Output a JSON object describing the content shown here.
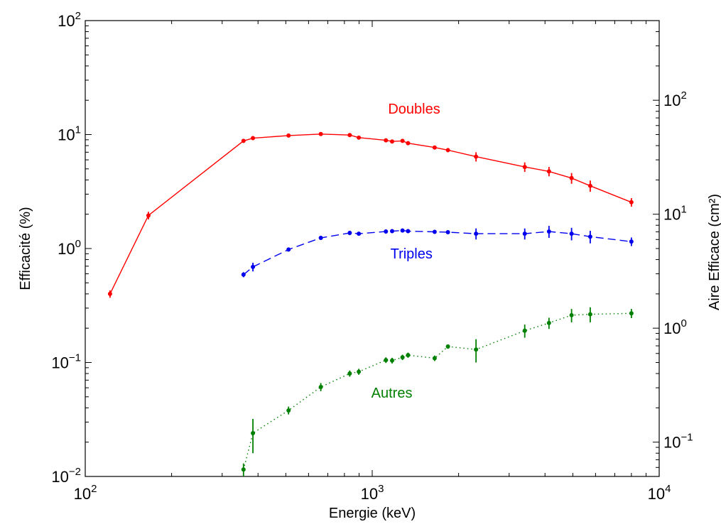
{
  "chart_data": {
    "type": "line",
    "xlabel": "Energie (keV)",
    "ylabel": "Efficacité (%)",
    "y2label": "Aire Efficace (cm²)",
    "xscale": "log",
    "yscale": "log",
    "xlim": [
      100,
      10000
    ],
    "ylim": [
      0.01,
      100
    ],
    "y2lim": [
      0.05,
      500
    ],
    "grid": false,
    "x_ticks": [
      {
        "base": "10",
        "exp": "2",
        "value": 100
      },
      {
        "base": "10",
        "exp": "3",
        "value": 1000
      },
      {
        "base": "10",
        "exp": "4",
        "value": 10000
      }
    ],
    "y_ticks": [
      {
        "base": "10",
        "exp": "−2",
        "value": 0.01
      },
      {
        "base": "10",
        "exp": "−1",
        "value": 0.1
      },
      {
        "base": "10",
        "exp": "0",
        "value": 1
      },
      {
        "base": "10",
        "exp": "1",
        "value": 10
      },
      {
        "base": "10",
        "exp": "2",
        "value": 100
      }
    ],
    "y2_ticks": [
      {
        "base": "10",
        "exp": "−1",
        "value": 0.1
      },
      {
        "base": "10",
        "exp": "0",
        "value": 1
      },
      {
        "base": "10",
        "exp": "1",
        "value": 10
      },
      {
        "base": "10",
        "exp": "2",
        "value": 100
      }
    ],
    "series": [
      {
        "name": "Doubles",
        "color": "#ff0000",
        "style": "solid",
        "label_at": {
          "x": 1400,
          "y": 15.3
        },
        "points": [
          {
            "x": 122,
            "y": 0.4,
            "err": 0.03
          },
          {
            "x": 166,
            "y": 1.95,
            "err": 0.15
          },
          {
            "x": 356,
            "y": 8.8,
            "err": 0.3
          },
          {
            "x": 384,
            "y": 9.3,
            "err": 0.3
          },
          {
            "x": 511,
            "y": 9.8,
            "err": 0.3
          },
          {
            "x": 662,
            "y": 10.1,
            "err": 0.3
          },
          {
            "x": 835,
            "y": 9.9,
            "err": 0.3
          },
          {
            "x": 898,
            "y": 9.4,
            "err": 0.3
          },
          {
            "x": 1116,
            "y": 8.9,
            "err": 0.3
          },
          {
            "x": 1173,
            "y": 8.7,
            "err": 0.3
          },
          {
            "x": 1275,
            "y": 8.8,
            "err": 0.3
          },
          {
            "x": 1333,
            "y": 8.4,
            "err": 0.3
          },
          {
            "x": 1650,
            "y": 7.7,
            "err": 0.3
          },
          {
            "x": 1836,
            "y": 7.3,
            "err": 0.3
          },
          {
            "x": 2300,
            "y": 6.4,
            "err": 0.6
          },
          {
            "x": 3400,
            "y": 5.2,
            "err": 0.5
          },
          {
            "x": 4130,
            "y": 4.75,
            "err": 0.45
          },
          {
            "x": 4950,
            "y": 4.15,
            "err": 0.45
          },
          {
            "x": 5750,
            "y": 3.55,
            "err": 0.4
          },
          {
            "x": 8000,
            "y": 2.55,
            "err": 0.22
          }
        ]
      },
      {
        "name": "Triples",
        "color": "#0000ee",
        "style": "dashed",
        "label_at": {
          "x": 1370,
          "y": 0.82
        },
        "points": [
          {
            "x": 356,
            "y": 0.59,
            "err": 0.03
          },
          {
            "x": 384,
            "y": 0.69,
            "err": 0.06
          },
          {
            "x": 511,
            "y": 0.98,
            "err": 0.04
          },
          {
            "x": 662,
            "y": 1.24,
            "err": 0.05
          },
          {
            "x": 835,
            "y": 1.37,
            "err": 0.06
          },
          {
            "x": 898,
            "y": 1.35,
            "err": 0.05
          },
          {
            "x": 1116,
            "y": 1.41,
            "err": 0.06
          },
          {
            "x": 1173,
            "y": 1.42,
            "err": 0.05
          },
          {
            "x": 1275,
            "y": 1.44,
            "err": 0.05
          },
          {
            "x": 1333,
            "y": 1.42,
            "err": 0.05
          },
          {
            "x": 1650,
            "y": 1.4,
            "err": 0.05
          },
          {
            "x": 1836,
            "y": 1.39,
            "err": 0.05
          },
          {
            "x": 2300,
            "y": 1.35,
            "err": 0.15
          },
          {
            "x": 3400,
            "y": 1.35,
            "err": 0.15
          },
          {
            "x": 4130,
            "y": 1.41,
            "err": 0.17
          },
          {
            "x": 4950,
            "y": 1.35,
            "err": 0.17
          },
          {
            "x": 5750,
            "y": 1.27,
            "err": 0.16
          },
          {
            "x": 8000,
            "y": 1.15,
            "err": 0.1
          }
        ]
      },
      {
        "name": "Autres",
        "color": "#008000",
        "style": "dotted",
        "label_at": {
          "x": 1170,
          "y": 0.049
        },
        "points": [
          {
            "x": 356,
            "y": 0.0115,
            "err": 0.0015
          },
          {
            "x": 384,
            "y": 0.024,
            "err": 0.008
          },
          {
            "x": 511,
            "y": 0.038,
            "err": 0.003
          },
          {
            "x": 662,
            "y": 0.061,
            "err": 0.005
          },
          {
            "x": 835,
            "y": 0.08,
            "err": 0.005
          },
          {
            "x": 898,
            "y": 0.083,
            "err": 0.005
          },
          {
            "x": 1116,
            "y": 0.105,
            "err": 0.006
          },
          {
            "x": 1173,
            "y": 0.104,
            "err": 0.006
          },
          {
            "x": 1275,
            "y": 0.111,
            "err": 0.006
          },
          {
            "x": 1333,
            "y": 0.116,
            "err": 0.006
          },
          {
            "x": 1650,
            "y": 0.109,
            "err": 0.006
          },
          {
            "x": 1836,
            "y": 0.138,
            "err": 0.006
          },
          {
            "x": 2300,
            "y": 0.13,
            "err": 0.03
          },
          {
            "x": 3400,
            "y": 0.19,
            "err": 0.025
          },
          {
            "x": 4130,
            "y": 0.222,
            "err": 0.025
          },
          {
            "x": 4950,
            "y": 0.26,
            "err": 0.035
          },
          {
            "x": 5750,
            "y": 0.265,
            "err": 0.04
          },
          {
            "x": 8000,
            "y": 0.27,
            "err": 0.025
          }
        ]
      }
    ]
  }
}
